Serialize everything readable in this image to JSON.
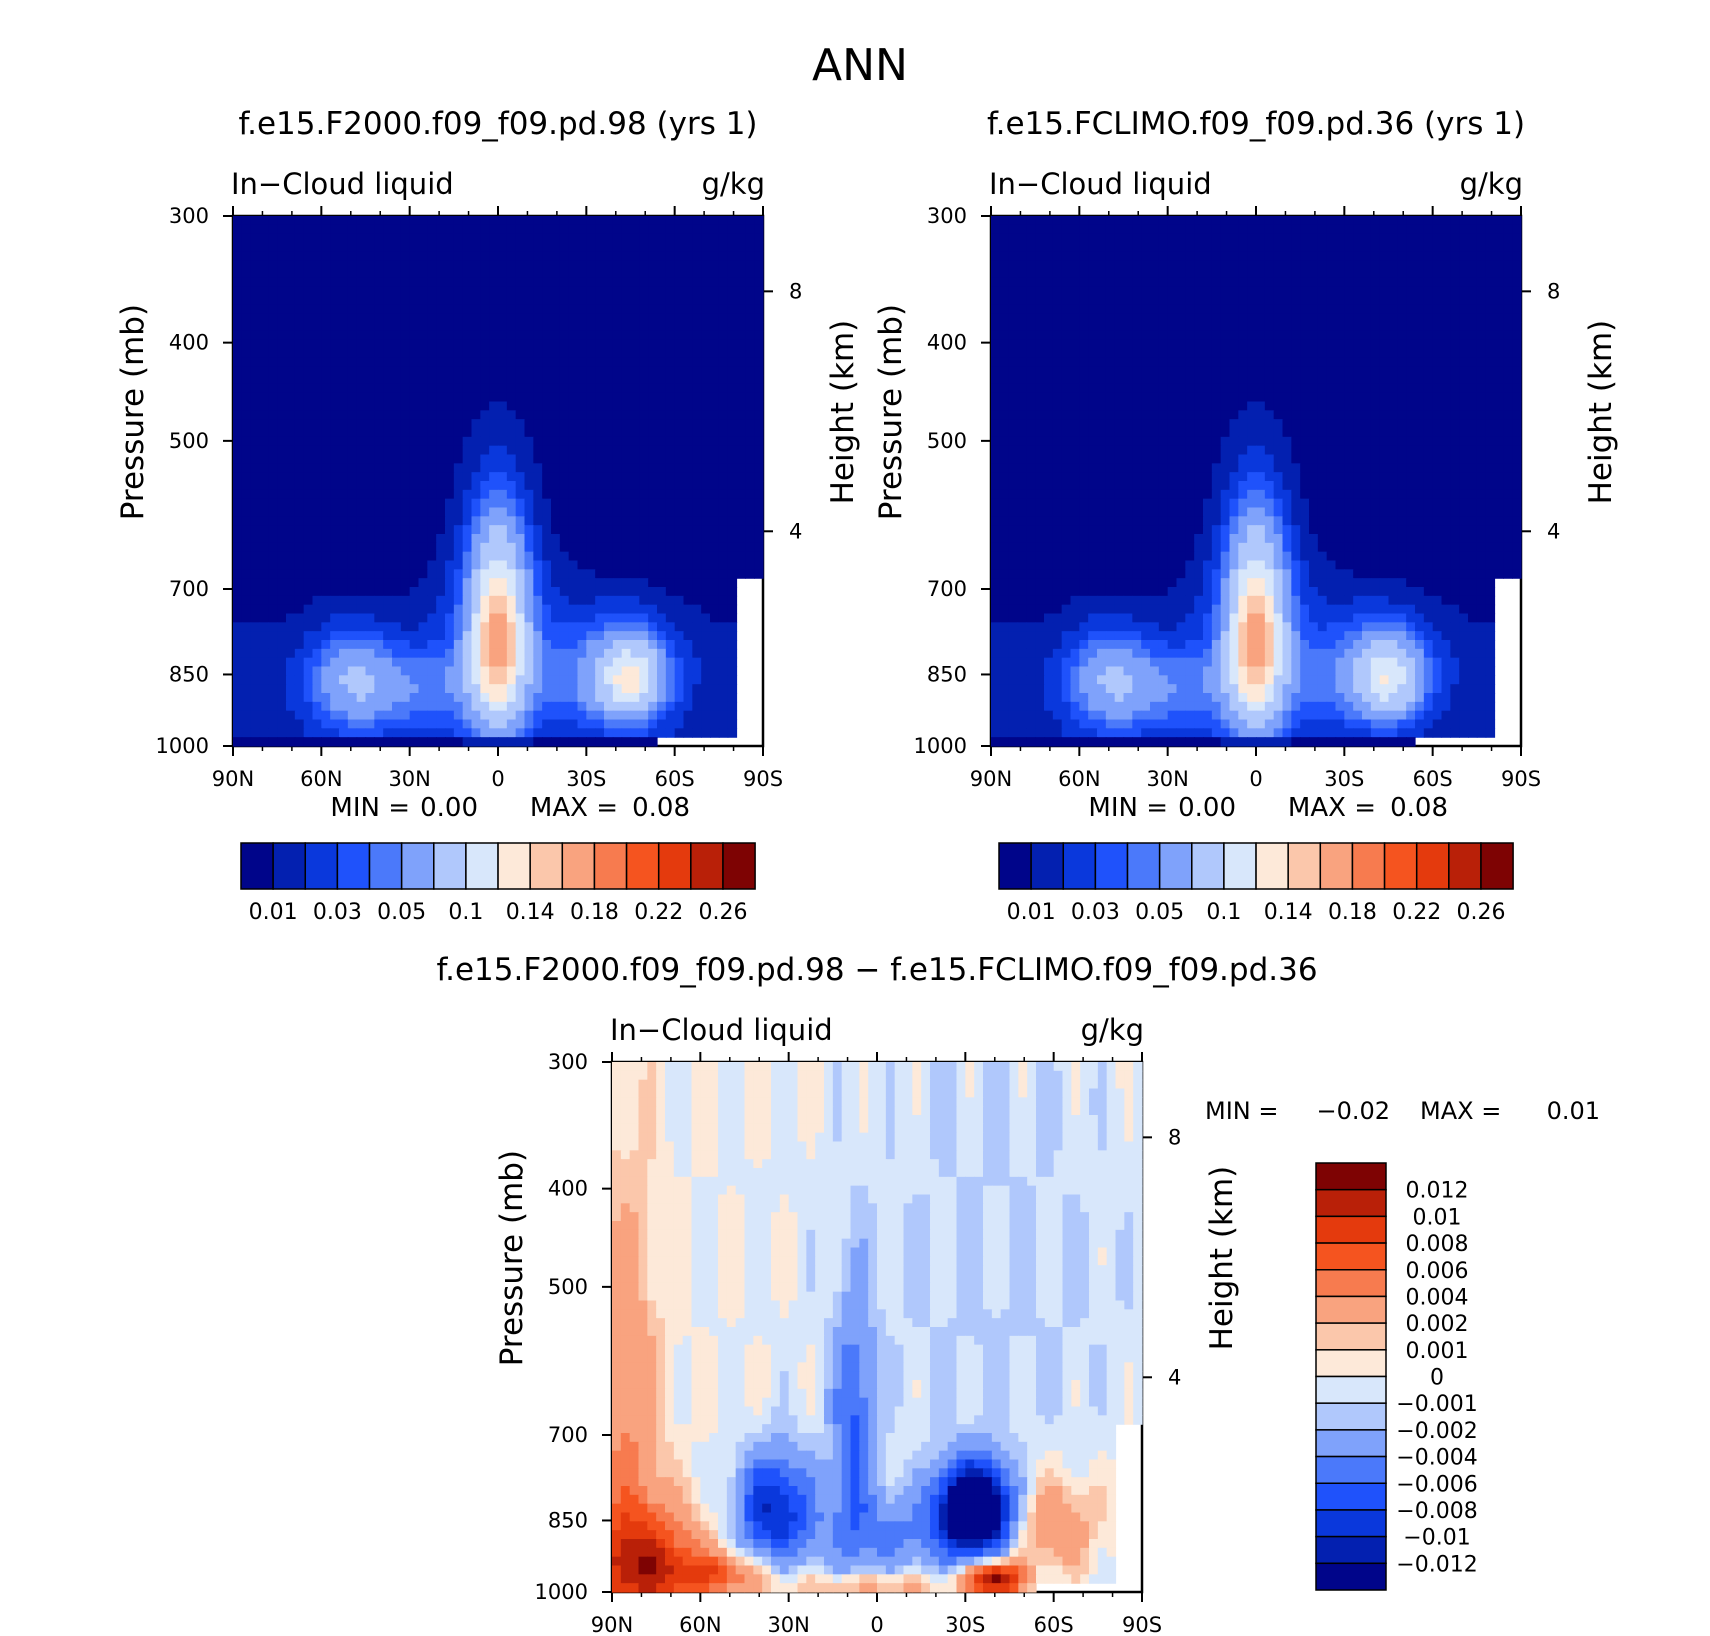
{
  "title": "ANN",
  "colors": {
    "abs_scale": [
      "#00058a",
      "#0320b0",
      "#0a38dc",
      "#1f52fb",
      "#4b79fa",
      "#7fa2fb",
      "#b0c8fc",
      "#d8e7fb",
      "#fde9d9",
      "#fbc7ab",
      "#f9a37f",
      "#f77b4f",
      "#f5541f",
      "#e43a0d",
      "#b92008",
      "#7e0303"
    ],
    "diff_scale": [
      "#00058a",
      "#0320b0",
      "#0a38dc",
      "#1f52fb",
      "#4b79fa",
      "#7fa2fb",
      "#b0c8fc",
      "#d8e7fb",
      "#fde9d9",
      "#fbc7ab",
      "#f9a37f",
      "#f77b4f",
      "#f5541f",
      "#e43a0d",
      "#b92008",
      "#7e0303"
    ]
  },
  "chart_data": [
    {
      "type": "heatmap",
      "title": "f.e15.F2000.f09_f09.pd.98 (yrs  1)",
      "left_label": "In−Cloud liquid",
      "right_label": "g/kg",
      "ylabel": "Pressure (mb)",
      "y2label": "Height (km)",
      "x_ticks": [
        "90N",
        "60N",
        "30N",
        "0",
        "30S",
        "60S",
        "90S"
      ],
      "x_values": [
        90,
        60,
        30,
        0,
        -30,
        -60,
        -90
      ],
      "y_ticks": [
        "300",
        "400",
        "500",
        "700",
        "850",
        "1000"
      ],
      "y_values": [
        300,
        400,
        500,
        700,
        850,
        1000
      ],
      "y2_ticks": [
        "8",
        "4"
      ],
      "y2_pressure": [
        356,
        614
      ],
      "min_label": "MIN =",
      "min_value": "0.00",
      "max_label": "MAX =",
      "max_value": "0.08",
      "min": 0.0,
      "max": 0.08,
      "colorbar_labels": [
        "0.01",
        "0.03",
        "0.05",
        "0.1",
        "0.14",
        "0.18",
        "0.22",
        "0.26"
      ],
      "colorbar_levels": [
        0.005,
        0.01,
        0.02,
        0.03,
        0.04,
        0.05,
        0.07,
        0.1,
        0.12,
        0.14,
        0.16,
        0.18,
        0.2,
        0.22,
        0.24,
        0.26
      ]
    },
    {
      "type": "heatmap",
      "title": "f.e15.FCLIMO.f09_f09.pd.36 (yrs  1)",
      "left_label": "In−Cloud liquid",
      "right_label": "g/kg",
      "ylabel": "Pressure (mb)",
      "y2label": "Height (km)",
      "x_ticks": [
        "90N",
        "60N",
        "30N",
        "0",
        "30S",
        "60S",
        "90S"
      ],
      "x_values": [
        90,
        60,
        30,
        0,
        -30,
        -60,
        -90
      ],
      "y_ticks": [
        "300",
        "400",
        "500",
        "700",
        "850",
        "1000"
      ],
      "y_values": [
        300,
        400,
        500,
        700,
        850,
        1000
      ],
      "y2_ticks": [
        "8",
        "4"
      ],
      "y2_pressure": [
        356,
        614
      ],
      "min_label": "MIN =",
      "min_value": "0.00",
      "max_label": "MAX =",
      "max_value": "0.08",
      "min": 0.0,
      "max": 0.08,
      "colorbar_labels": [
        "0.01",
        "0.03",
        "0.05",
        "0.1",
        "0.14",
        "0.18",
        "0.22",
        "0.26"
      ],
      "colorbar_levels": [
        0.005,
        0.01,
        0.02,
        0.03,
        0.04,
        0.05,
        0.07,
        0.1,
        0.12,
        0.14,
        0.16,
        0.18,
        0.2,
        0.22,
        0.24,
        0.26
      ]
    },
    {
      "type": "heatmap",
      "title": "f.e15.F2000.f09_f09.pd.98 − f.e15.FCLIMO.f09_f09.pd.36",
      "left_label": "In−Cloud liquid",
      "right_label": "g/kg",
      "ylabel": "Pressure (mb)",
      "y2label": "Height (km)",
      "x_ticks": [
        "90N",
        "60N",
        "30N",
        "0",
        "30S",
        "60S",
        "90S"
      ],
      "x_values": [
        90,
        60,
        30,
        0,
        -30,
        -60,
        -90
      ],
      "y_ticks": [
        "300",
        "400",
        "500",
        "700",
        "850",
        "1000"
      ],
      "y_values": [
        300,
        400,
        500,
        700,
        850,
        1000
      ],
      "y2_ticks": [
        "8",
        "4"
      ],
      "y2_pressure": [
        356,
        614
      ],
      "min_label": "MIN =",
      "min_value": "−0.02",
      "max_label": "MAX =",
      "max_value": "0.01",
      "min": -0.02,
      "max": 0.01,
      "colorbar_labels": [
        "0.012",
        "0.01",
        "0.008",
        "0.006",
        "0.004",
        "0.002",
        "0.001",
        "0",
        "−0.001",
        "−0.002",
        "−0.004",
        "−0.006",
        "−0.008",
        "−0.01",
        "−0.012"
      ],
      "colorbar_levels": [
        0.012,
        0.01,
        0.008,
        0.006,
        0.004,
        0.002,
        0.001,
        0,
        -0.001,
        -0.002,
        -0.004,
        -0.006,
        -0.008,
        -0.01,
        -0.012
      ]
    }
  ]
}
